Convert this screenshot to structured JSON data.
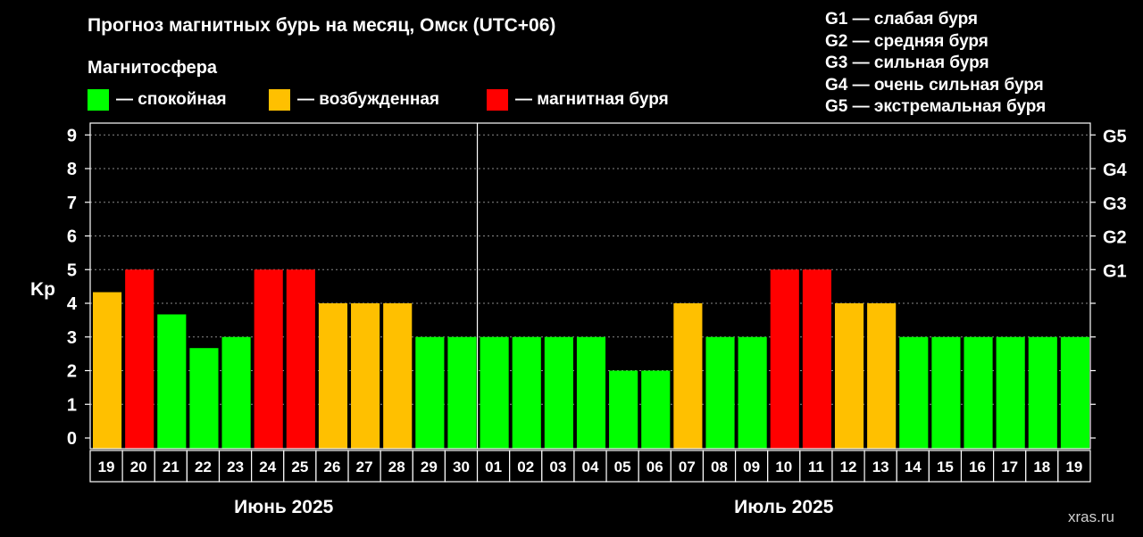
{
  "chart_data": {
    "type": "bar",
    "title": "Прогноз магнитных бурь на месяц, Омск (UTC+06)",
    "subtitle": "Магнитосфера",
    "ylabel": "Kp",
    "ylim": [
      0,
      9
    ],
    "yticks": [
      "0",
      "1",
      "2",
      "3",
      "4",
      "5",
      "6",
      "7",
      "8",
      "9"
    ],
    "right_ticks": [
      {
        "value": 5,
        "label": "G1"
      },
      {
        "value": 6,
        "label": "G2"
      },
      {
        "value": 7,
        "label": "G3"
      },
      {
        "value": 8,
        "label": "G4"
      },
      {
        "value": 9,
        "label": "G5"
      }
    ],
    "grid": "dashed-horizontal",
    "legend": [
      {
        "label": "— спокойная",
        "color": "#00ff00"
      },
      {
        "label": "— возбужденная",
        "color": "#ffc000"
      },
      {
        "label": "— магнитная буря",
        "color": "#ff0000"
      }
    ],
    "g_legend": [
      "G1 — слабая буря",
      "G2 — средняя буря",
      "G3 — сильная буря",
      "G4 — очень сильная буря",
      "G5 — экстремальная буря"
    ],
    "months": [
      {
        "label": "Июнь 2025",
        "from": 0,
        "to": 11
      },
      {
        "label": "Июль 2025",
        "from": 12,
        "to": 30
      }
    ],
    "month_divider_after": 11,
    "categories": [
      "19",
      "20",
      "21",
      "22",
      "23",
      "24",
      "25",
      "26",
      "27",
      "28",
      "29",
      "30",
      "01",
      "02",
      "03",
      "04",
      "05",
      "06",
      "07",
      "08",
      "09",
      "10",
      "11",
      "12",
      "13",
      "14",
      "15",
      "16",
      "17",
      "18",
      "19"
    ],
    "values": [
      4.33,
      5,
      3.67,
      2.67,
      3,
      5,
      5,
      4,
      4,
      4,
      3,
      3,
      3,
      3,
      3,
      3,
      2,
      2,
      4,
      3,
      3,
      5,
      5,
      4,
      4,
      3,
      3,
      3,
      3,
      3,
      3
    ],
    "colors": [
      "#ffc000",
      "#ff0000",
      "#00ff00",
      "#00ff00",
      "#00ff00",
      "#ff0000",
      "#ff0000",
      "#ffc000",
      "#ffc000",
      "#ffc000",
      "#00ff00",
      "#00ff00",
      "#00ff00",
      "#00ff00",
      "#00ff00",
      "#00ff00",
      "#00ff00",
      "#00ff00",
      "#ffc000",
      "#00ff00",
      "#00ff00",
      "#ff0000",
      "#ff0000",
      "#ffc000",
      "#ffc000",
      "#00ff00",
      "#00ff00",
      "#00ff00",
      "#00ff00",
      "#00ff00",
      "#00ff00"
    ]
  },
  "watermark": "xras.ru"
}
